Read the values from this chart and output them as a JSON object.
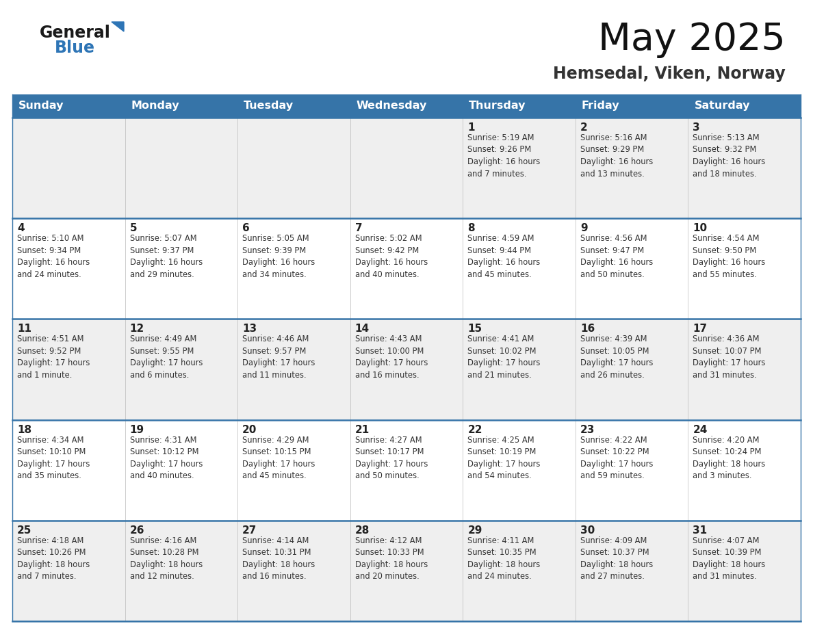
{
  "title": "May 2025",
  "subtitle": "Hemsedal, Viken, Norway",
  "days_of_week": [
    "Sunday",
    "Monday",
    "Tuesday",
    "Wednesday",
    "Thursday",
    "Friday",
    "Saturday"
  ],
  "header_bg": "#3674a8",
  "header_text": "#FFFFFF",
  "row_bg_odd": "#EFEFEF",
  "row_bg_even": "#FFFFFF",
  "cell_border_color": "#3674a8",
  "day_num_color": "#222222",
  "text_color": "#333333",
  "title_color": "#111111",
  "subtitle_color": "#333333",
  "logo_general_color": "#1a1a1a",
  "logo_blue_color": "#2E75B6",
  "calendar_data": [
    [
      {
        "day": "",
        "info": ""
      },
      {
        "day": "",
        "info": ""
      },
      {
        "day": "",
        "info": ""
      },
      {
        "day": "",
        "info": ""
      },
      {
        "day": "1",
        "info": "Sunrise: 5:19 AM\nSunset: 9:26 PM\nDaylight: 16 hours\nand 7 minutes."
      },
      {
        "day": "2",
        "info": "Sunrise: 5:16 AM\nSunset: 9:29 PM\nDaylight: 16 hours\nand 13 minutes."
      },
      {
        "day": "3",
        "info": "Sunrise: 5:13 AM\nSunset: 9:32 PM\nDaylight: 16 hours\nand 18 minutes."
      }
    ],
    [
      {
        "day": "4",
        "info": "Sunrise: 5:10 AM\nSunset: 9:34 PM\nDaylight: 16 hours\nand 24 minutes."
      },
      {
        "day": "5",
        "info": "Sunrise: 5:07 AM\nSunset: 9:37 PM\nDaylight: 16 hours\nand 29 minutes."
      },
      {
        "day": "6",
        "info": "Sunrise: 5:05 AM\nSunset: 9:39 PM\nDaylight: 16 hours\nand 34 minutes."
      },
      {
        "day": "7",
        "info": "Sunrise: 5:02 AM\nSunset: 9:42 PM\nDaylight: 16 hours\nand 40 minutes."
      },
      {
        "day": "8",
        "info": "Sunrise: 4:59 AM\nSunset: 9:44 PM\nDaylight: 16 hours\nand 45 minutes."
      },
      {
        "day": "9",
        "info": "Sunrise: 4:56 AM\nSunset: 9:47 PM\nDaylight: 16 hours\nand 50 minutes."
      },
      {
        "day": "10",
        "info": "Sunrise: 4:54 AM\nSunset: 9:50 PM\nDaylight: 16 hours\nand 55 minutes."
      }
    ],
    [
      {
        "day": "11",
        "info": "Sunrise: 4:51 AM\nSunset: 9:52 PM\nDaylight: 17 hours\nand 1 minute."
      },
      {
        "day": "12",
        "info": "Sunrise: 4:49 AM\nSunset: 9:55 PM\nDaylight: 17 hours\nand 6 minutes."
      },
      {
        "day": "13",
        "info": "Sunrise: 4:46 AM\nSunset: 9:57 PM\nDaylight: 17 hours\nand 11 minutes."
      },
      {
        "day": "14",
        "info": "Sunrise: 4:43 AM\nSunset: 10:00 PM\nDaylight: 17 hours\nand 16 minutes."
      },
      {
        "day": "15",
        "info": "Sunrise: 4:41 AM\nSunset: 10:02 PM\nDaylight: 17 hours\nand 21 minutes."
      },
      {
        "day": "16",
        "info": "Sunrise: 4:39 AM\nSunset: 10:05 PM\nDaylight: 17 hours\nand 26 minutes."
      },
      {
        "day": "17",
        "info": "Sunrise: 4:36 AM\nSunset: 10:07 PM\nDaylight: 17 hours\nand 31 minutes."
      }
    ],
    [
      {
        "day": "18",
        "info": "Sunrise: 4:34 AM\nSunset: 10:10 PM\nDaylight: 17 hours\nand 35 minutes."
      },
      {
        "day": "19",
        "info": "Sunrise: 4:31 AM\nSunset: 10:12 PM\nDaylight: 17 hours\nand 40 minutes."
      },
      {
        "day": "20",
        "info": "Sunrise: 4:29 AM\nSunset: 10:15 PM\nDaylight: 17 hours\nand 45 minutes."
      },
      {
        "day": "21",
        "info": "Sunrise: 4:27 AM\nSunset: 10:17 PM\nDaylight: 17 hours\nand 50 minutes."
      },
      {
        "day": "22",
        "info": "Sunrise: 4:25 AM\nSunset: 10:19 PM\nDaylight: 17 hours\nand 54 minutes."
      },
      {
        "day": "23",
        "info": "Sunrise: 4:22 AM\nSunset: 10:22 PM\nDaylight: 17 hours\nand 59 minutes."
      },
      {
        "day": "24",
        "info": "Sunrise: 4:20 AM\nSunset: 10:24 PM\nDaylight: 18 hours\nand 3 minutes."
      }
    ],
    [
      {
        "day": "25",
        "info": "Sunrise: 4:18 AM\nSunset: 10:26 PM\nDaylight: 18 hours\nand 7 minutes."
      },
      {
        "day": "26",
        "info": "Sunrise: 4:16 AM\nSunset: 10:28 PM\nDaylight: 18 hours\nand 12 minutes."
      },
      {
        "day": "27",
        "info": "Sunrise: 4:14 AM\nSunset: 10:31 PM\nDaylight: 18 hours\nand 16 minutes."
      },
      {
        "day": "28",
        "info": "Sunrise: 4:12 AM\nSunset: 10:33 PM\nDaylight: 18 hours\nand 20 minutes."
      },
      {
        "day": "29",
        "info": "Sunrise: 4:11 AM\nSunset: 10:35 PM\nDaylight: 18 hours\nand 24 minutes."
      },
      {
        "day": "30",
        "info": "Sunrise: 4:09 AM\nSunset: 10:37 PM\nDaylight: 18 hours\nand 27 minutes."
      },
      {
        "day": "31",
        "info": "Sunrise: 4:07 AM\nSunset: 10:39 PM\nDaylight: 18 hours\nand 31 minutes."
      }
    ]
  ]
}
